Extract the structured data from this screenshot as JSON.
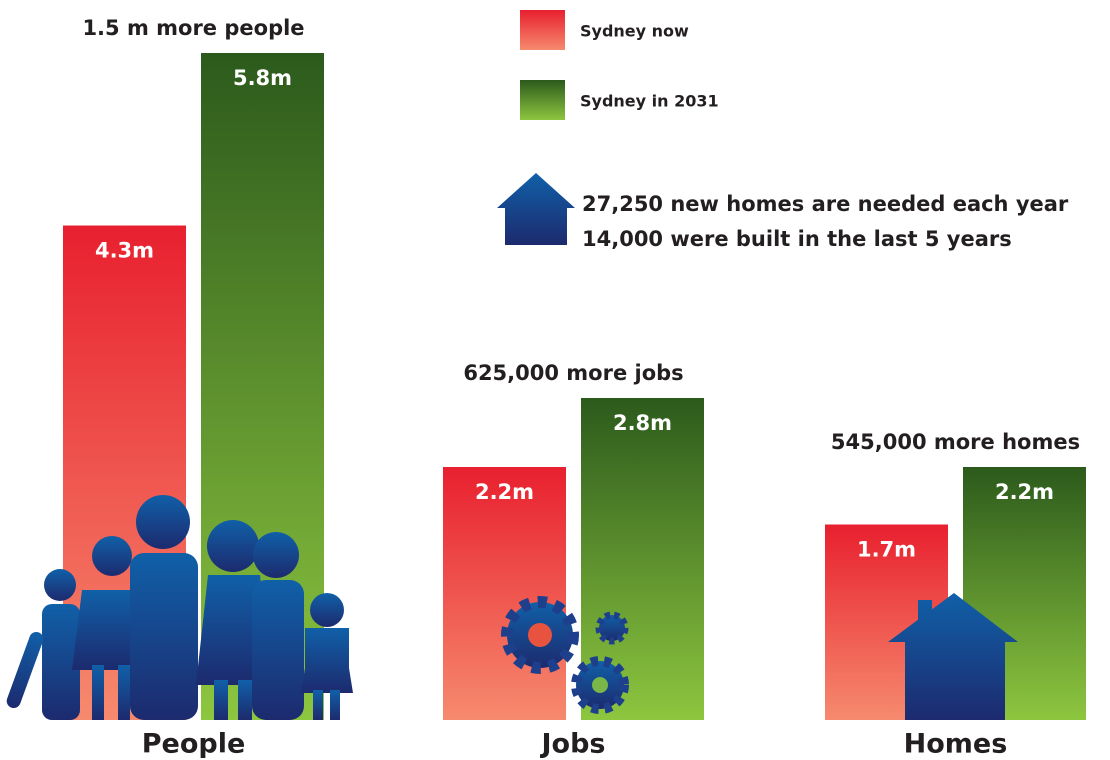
{
  "chart_data": {
    "type": "bar",
    "categories": [
      "People",
      "Jobs",
      "Homes"
    ],
    "annotations": [
      "1.5 m more people",
      "625,000 more jobs",
      "545,000 more homes"
    ],
    "notes": [
      "27,250 new homes are needed each year",
      "14,000 were built in the last 5 years"
    ],
    "series": [
      {
        "name": "Sydney now",
        "color": "#e8202f",
        "values": [
          4.3,
          2.2,
          1.7
        ],
        "value_labels": [
          "4.3m",
          "2.2m",
          "1.7m"
        ]
      },
      {
        "name": "Sydney in 2031",
        "color": "#2c5a1c",
        "values": [
          5.8,
          2.8,
          2.2
        ],
        "value_labels": [
          "5.8m",
          "2.8m",
          "2.2m"
        ]
      }
    ],
    "ylim": [
      0,
      6
    ]
  }
}
